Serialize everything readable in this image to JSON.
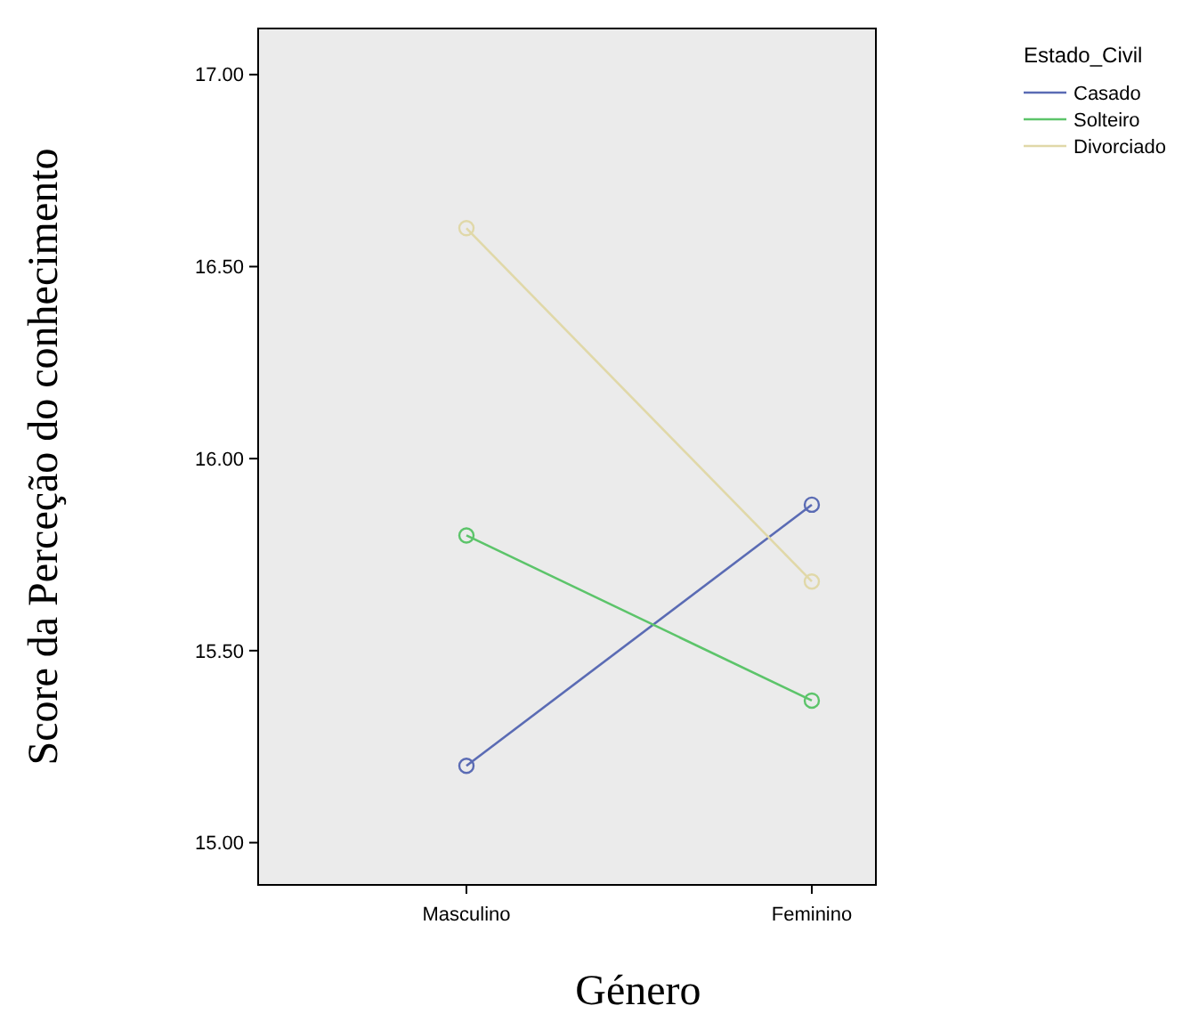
{
  "chart_data": {
    "type": "line",
    "xlabel": "Género",
    "ylabel": "Score da Perceção do conhecimento",
    "legend_title": "Estado_Civil",
    "categories": [
      "Masculino",
      "Feminino"
    ],
    "series": [
      {
        "name": "Casado",
        "color": "#5a6bb4",
        "values": [
          15.2,
          15.88
        ]
      },
      {
        "name": "Solteiro",
        "color": "#5cc46a",
        "values": [
          15.8,
          15.37
        ]
      },
      {
        "name": "Divorciado",
        "color": "#e0d8a8",
        "values": [
          16.6,
          15.68
        ]
      }
    ],
    "ylim": [
      14.89,
      17.12
    ],
    "yticks": [
      {
        "value": 15,
        "label": "15.00"
      },
      {
        "value": 15.5,
        "label": "15.50"
      },
      {
        "value": 16,
        "label": "16.00"
      },
      {
        "value": 16.5,
        "label": "16.50"
      },
      {
        "value": 17,
        "label": "17.00"
      }
    ],
    "marker": "circle",
    "legend": "top right",
    "grid": false
  }
}
